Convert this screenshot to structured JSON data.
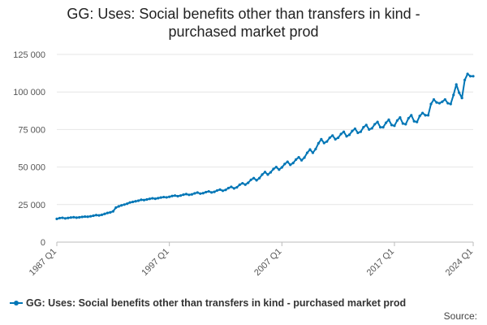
{
  "chart_data": {
    "type": "line",
    "title_lines": [
      "GG: Uses: Social benefits other than transfers in kind -",
      "purchased market prod"
    ],
    "xlabel": "",
    "ylabel": "",
    "ylim": [
      0,
      125000
    ],
    "y_ticks": [
      0,
      25000,
      50000,
      75000,
      100000,
      125000
    ],
    "y_tick_labels": [
      "0",
      "25 000",
      "50 000",
      "75 000",
      "100 000",
      "125 000"
    ],
    "x_tick_labels": [
      "1987 Q1",
      "1997 Q1",
      "2007 Q1",
      "2017 Q1",
      "2024 Q1"
    ],
    "x_tick_index": [
      0,
      40,
      80,
      120,
      148
    ],
    "grid": true,
    "legend_position": "bottom",
    "color": "#0076b6",
    "series": [
      {
        "name": "GG: Uses: Social benefits other than transfers in kind - purchased market prod",
        "values": [
          15500,
          16000,
          16200,
          15800,
          16100,
          16400,
          16600,
          16300,
          16500,
          16800,
          17000,
          16900,
          17200,
          17600,
          18000,
          17800,
          18200,
          18800,
          19400,
          19800,
          20500,
          23000,
          23800,
          24500,
          25000,
          25600,
          26400,
          26800,
          27200,
          27600,
          28200,
          28000,
          28400,
          28800,
          29200,
          28900,
          29300,
          29700,
          30000,
          29800,
          30200,
          30700,
          31000,
          30600,
          31000,
          31600,
          32000,
          31500,
          31800,
          32500,
          33000,
          32300,
          32600,
          33300,
          33800,
          33100,
          33500,
          34400,
          35000,
          34200,
          34800,
          36000,
          36800,
          35800,
          36500,
          38200,
          39200,
          38300,
          39500,
          41500,
          42600,
          41200,
          42600,
          45000,
          46700,
          45000,
          46500,
          48700,
          50000,
          48300,
          49800,
          52000,
          53500,
          51500,
          52700,
          55000,
          56500,
          54500,
          56300,
          59500,
          61700,
          59500,
          62000,
          65800,
          68500,
          66000,
          67000,
          69500,
          71000,
          68500,
          69500,
          72000,
          73500,
          70500,
          71500,
          74000,
          75500,
          72800,
          73500,
          76500,
          78000,
          75000,
          75800,
          78500,
          80000,
          76500,
          76500,
          79500,
          81500,
          78000,
          77500,
          81000,
          83000,
          79000,
          78500,
          82500,
          84500,
          80500,
          80000,
          84000,
          86000,
          84500,
          84500,
          92000,
          95000,
          93000,
          92500,
          93500,
          95000,
          92500,
          92000,
          98000,
          105000,
          99500,
          96000,
          108000,
          112000,
          110500,
          110500
        ]
      }
    ]
  },
  "source_label": "Source:"
}
